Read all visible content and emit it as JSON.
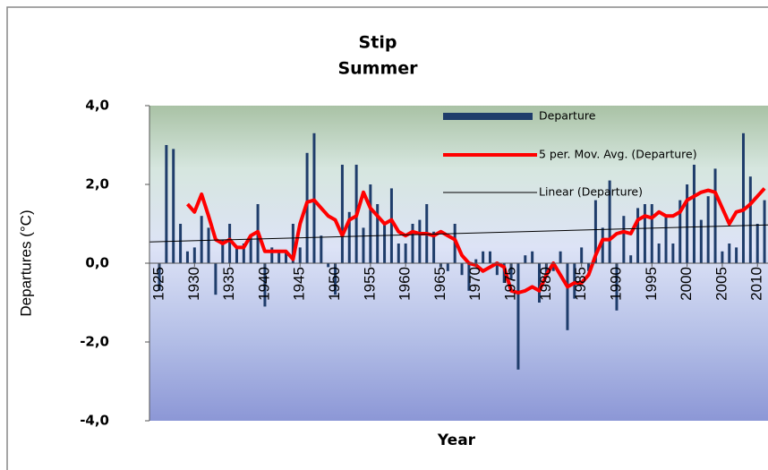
{
  "chart_data": {
    "type": "bar",
    "title": "Stip",
    "subtitle": "Summer",
    "xlabel": "Year",
    "ylabel": "Departures (°C)",
    "xlim": [
      1923.6,
      2011.5
    ],
    "ylim": [
      -4,
      4
    ],
    "yticks": [
      {
        "value": -4,
        "label": "-4,0"
      },
      {
        "value": -2,
        "label": "-2,0"
      },
      {
        "value": 0,
        "label": "0,0"
      },
      {
        "value": 2,
        "label": "2,0"
      },
      {
        "value": 4,
        "label": "4,0"
      }
    ],
    "xticks": [
      1925,
      1930,
      1935,
      1940,
      1945,
      1950,
      1955,
      1960,
      1965,
      1970,
      1975,
      1980,
      1985,
      1990,
      1995,
      2000,
      2005,
      2010
    ],
    "legend": "upper right",
    "x": [
      1925,
      1926,
      1927,
      1928,
      1929,
      1930,
      1931,
      1932,
      1933,
      1934,
      1935,
      1936,
      1937,
      1938,
      1939,
      1940,
      1941,
      1942,
      1943,
      1944,
      1945,
      1946,
      1947,
      1948,
      1949,
      1950,
      1951,
      1952,
      1953,
      1954,
      1955,
      1956,
      1957,
      1958,
      1959,
      1960,
      1961,
      1962,
      1963,
      1964,
      1965,
      1966,
      1967,
      1968,
      1969,
      1970,
      1971,
      1972,
      1973,
      1974,
      1975,
      1976,
      1977,
      1978,
      1979,
      1980,
      1981,
      1982,
      1983,
      1984,
      1985,
      1986,
      1987,
      1988,
      1989,
      1990,
      1991,
      1992,
      1993,
      1994,
      1995,
      1996,
      1997,
      1998,
      1999,
      2000,
      2001,
      2002,
      2003,
      2004,
      2005,
      2006,
      2007,
      2008,
      2009,
      2010,
      2011
    ],
    "series": [
      {
        "name": "Departure",
        "color": "#1f3d6b",
        "kind": "bar",
        "values": [
          -0.7,
          3.0,
          2.9,
          1.0,
          0.3,
          0.4,
          1.2,
          0.9,
          -0.8,
          0.6,
          1.0,
          0.4,
          0.5,
          0.7,
          1.5,
          -1.1,
          0.4,
          0.3,
          0.3,
          1.0,
          0.4,
          2.8,
          3.3,
          0.7,
          -0.1,
          -0.8,
          2.5,
          1.3,
          2.5,
          0.9,
          2.0,
          1.5,
          1.0,
          1.9,
          0.5,
          0.5,
          1.0,
          1.1,
          1.5,
          0.8,
          -0.1,
          -0.2,
          1.0,
          -0.3,
          -0.7,
          0.1,
          0.3,
          0.3,
          -0.3,
          -0.5,
          -0.4,
          -2.7,
          0.2,
          0.3,
          -1.0,
          -0.3,
          -0.2,
          0.3,
          -1.7,
          -0.9,
          0.4,
          -0.2,
          1.6,
          0.9,
          2.1,
          -1.2,
          1.2,
          0.2,
          1.4,
          1.5,
          1.5,
          0.5,
          1.2,
          0.5,
          1.6,
          2.0,
          2.5,
          1.1,
          1.7,
          2.4,
          0.3,
          0.5,
          0.4,
          3.3,
          2.2,
          1.0,
          1.6
        ]
      },
      {
        "name": "5 per. Mov. Avg. (Departure)",
        "color": "#ff0000",
        "kind": "line",
        "values": [
          null,
          null,
          null,
          null,
          1.5,
          1.3,
          1.75,
          1.2,
          0.6,
          0.5,
          0.6,
          0.4,
          0.4,
          0.7,
          0.8,
          0.3,
          0.3,
          0.3,
          0.3,
          0.1,
          1.0,
          1.55,
          1.6,
          1.4,
          1.2,
          1.1,
          0.7,
          1.1,
          1.2,
          1.8,
          1.4,
          1.2,
          1.0,
          1.1,
          0.8,
          0.7,
          0.8,
          0.75,
          0.75,
          0.7,
          0.8,
          0.7,
          0.6,
          0.2,
          0.0,
          -0.05,
          -0.2,
          -0.1,
          0.0,
          -0.1,
          -0.7,
          -0.75,
          -0.7,
          -0.6,
          -0.7,
          -0.3,
          0.0,
          -0.3,
          -0.6,
          -0.5,
          -0.5,
          -0.3,
          0.2,
          0.6,
          0.6,
          0.75,
          0.8,
          0.75,
          1.1,
          1.2,
          1.15,
          1.3,
          1.2,
          1.2,
          1.3,
          1.6,
          1.7,
          1.8,
          1.85,
          1.8,
          1.4,
          1.0,
          1.3,
          1.35,
          1.5,
          1.7,
          1.9
        ]
      },
      {
        "name": "Linear (Departure)",
        "color": "#000000",
        "kind": "line",
        "x": [
          1923.6,
          2011.5
        ],
        "values": [
          0.54,
          0.97
        ]
      }
    ]
  }
}
